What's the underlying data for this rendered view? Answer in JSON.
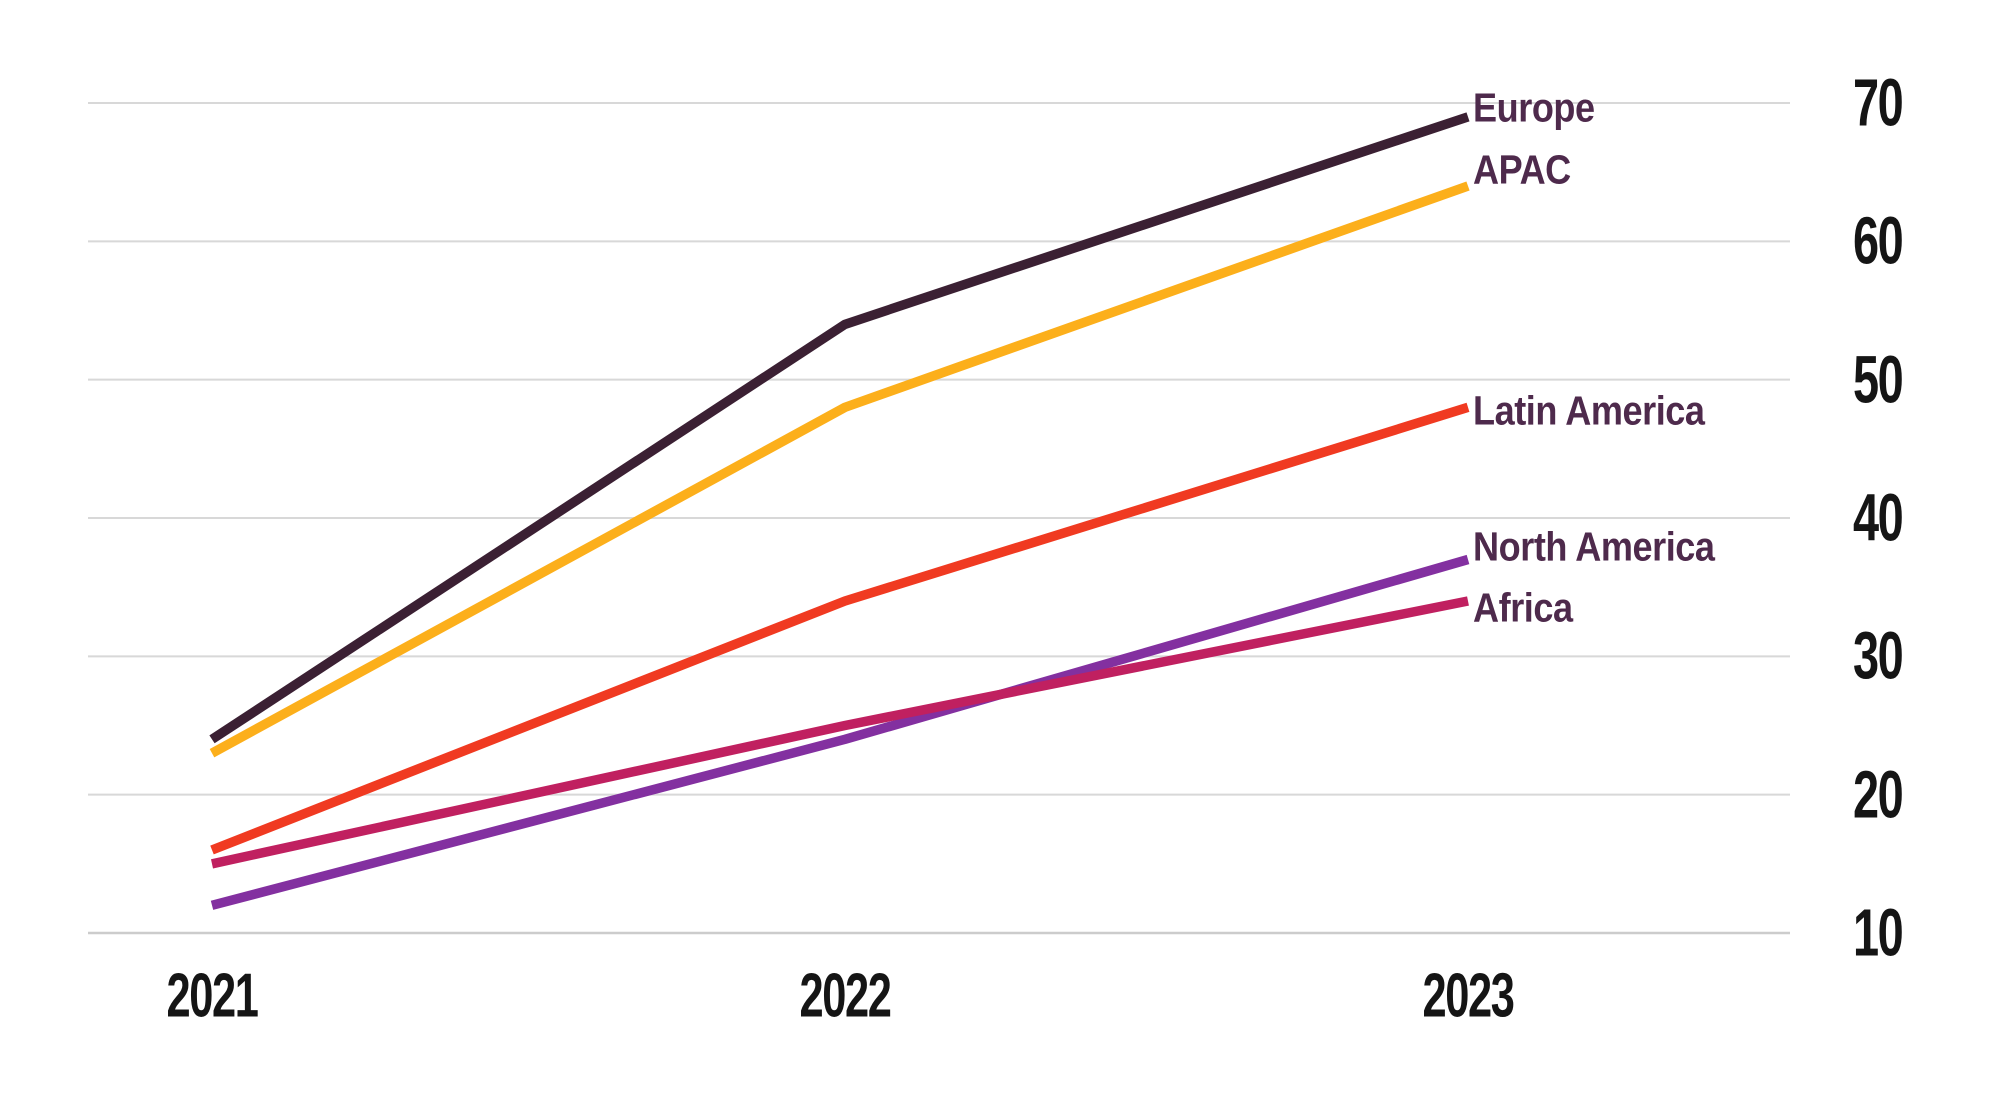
{
  "chart_data": {
    "type": "line",
    "title": "",
    "xlabel": "",
    "ylabel": "",
    "categories": [
      "2021",
      "2022",
      "2023"
    ],
    "series": [
      {
        "name": "Europe",
        "color": "#3B2033",
        "values": [
          24,
          54,
          69
        ]
      },
      {
        "name": "APAC",
        "color": "#FCAF1B",
        "values": [
          23,
          48,
          64
        ]
      },
      {
        "name": "Latin America",
        "color": "#F03A21",
        "values": [
          16,
          34,
          48
        ]
      },
      {
        "name": "North America",
        "color": "#8330A0",
        "values": [
          12,
          24,
          37
        ]
      },
      {
        "name": "Africa",
        "color": "#C02060",
        "values": [
          15,
          25,
          34
        ]
      }
    ],
    "ylim": [
      10,
      70
    ],
    "yticks": [
      70,
      60,
      50,
      40,
      30,
      20,
      10
    ],
    "grid": "horizontal-only",
    "legend_position": "labels-at-line-ends-right",
    "colors": {
      "background": "#FFFFFF",
      "gridline": "#D8D8D8",
      "baseline": "#CCCCCC",
      "tick_label": "#151515",
      "series_label": "#4E2A4C"
    }
  }
}
